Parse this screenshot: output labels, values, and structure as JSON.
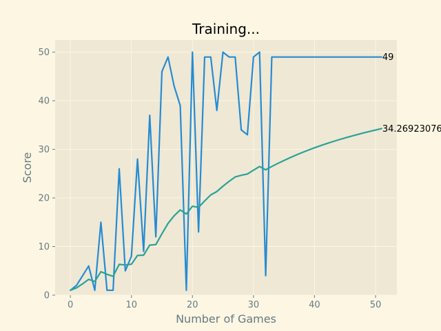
{
  "colors": {
    "page_background": "#fdf6e3",
    "plot_background": "#eee8d5",
    "grid": "#fdf6e3",
    "tick_text": "#657b83",
    "score_series": "#268bd2",
    "mean_series": "#2aa198"
  },
  "chart_data": {
    "type": "line",
    "title": "Training...",
    "xlabel": "Number of Games",
    "ylabel": "Score",
    "xlim": [
      -2.5,
      53.5
    ],
    "ylim": [
      0,
      52.5
    ],
    "xticks": [
      0,
      10,
      20,
      30,
      40,
      50
    ],
    "yticks": [
      0,
      10,
      20,
      30,
      40,
      50
    ],
    "grid": true,
    "legend": "none",
    "series": [
      {
        "key": "scores",
        "color": "#268bd2",
        "x": [
          0,
          1,
          2,
          3,
          4,
          5,
          6,
          7,
          8,
          9,
          10,
          11,
          12,
          13,
          14,
          15,
          16,
          17,
          18,
          19,
          20,
          21,
          22,
          23,
          24,
          25,
          26,
          27,
          28,
          29,
          30,
          31,
          32,
          33,
          34,
          35,
          36,
          37,
          38,
          39,
          40,
          41,
          42,
          43,
          44,
          45,
          46,
          47,
          48,
          49,
          50,
          51
        ],
        "values": [
          1,
          2,
          4,
          6,
          1,
          15,
          1,
          1,
          26,
          5,
          8,
          28,
          9,
          37,
          12,
          46,
          49,
          43,
          39,
          1,
          50,
          13,
          49,
          49,
          38,
          50,
          49,
          49,
          34,
          33,
          49,
          50,
          4,
          49,
          49,
          49,
          49,
          49,
          49,
          49,
          49,
          49,
          49,
          49,
          49,
          49,
          49,
          49,
          49,
          49,
          49,
          49
        ],
        "end_label": "49"
      },
      {
        "key": "mean_scores",
        "color": "#2aa198",
        "x": [
          0,
          1,
          2,
          3,
          4,
          5,
          6,
          7,
          8,
          9,
          10,
          11,
          12,
          13,
          14,
          15,
          16,
          17,
          18,
          19,
          20,
          21,
          22,
          23,
          24,
          25,
          26,
          27,
          28,
          29,
          30,
          31,
          32,
          33,
          34,
          35,
          36,
          37,
          38,
          39,
          40,
          41,
          42,
          43,
          44,
          45,
          46,
          47,
          48,
          49,
          50,
          51
        ],
        "values": [
          1.0,
          1.5,
          2.33,
          3.25,
          2.8,
          4.83,
          4.29,
          3.88,
          6.33,
          6.2,
          6.36,
          8.17,
          8.23,
          10.29,
          10.4,
          12.63,
          14.76,
          16.33,
          17.53,
          16.7,
          18.29,
          18.05,
          19.39,
          20.63,
          21.32,
          22.42,
          23.41,
          24.32,
          24.66,
          24.93,
          25.71,
          26.47,
          25.79,
          26.47,
          27.11,
          27.71,
          28.29,
          28.84,
          29.36,
          29.85,
          30.32,
          30.76,
          31.19,
          31.59,
          31.98,
          32.35,
          32.7,
          33.04,
          33.37,
          33.68,
          33.98,
          34.27
        ],
        "end_label": "34.26923076"
      }
    ]
  }
}
